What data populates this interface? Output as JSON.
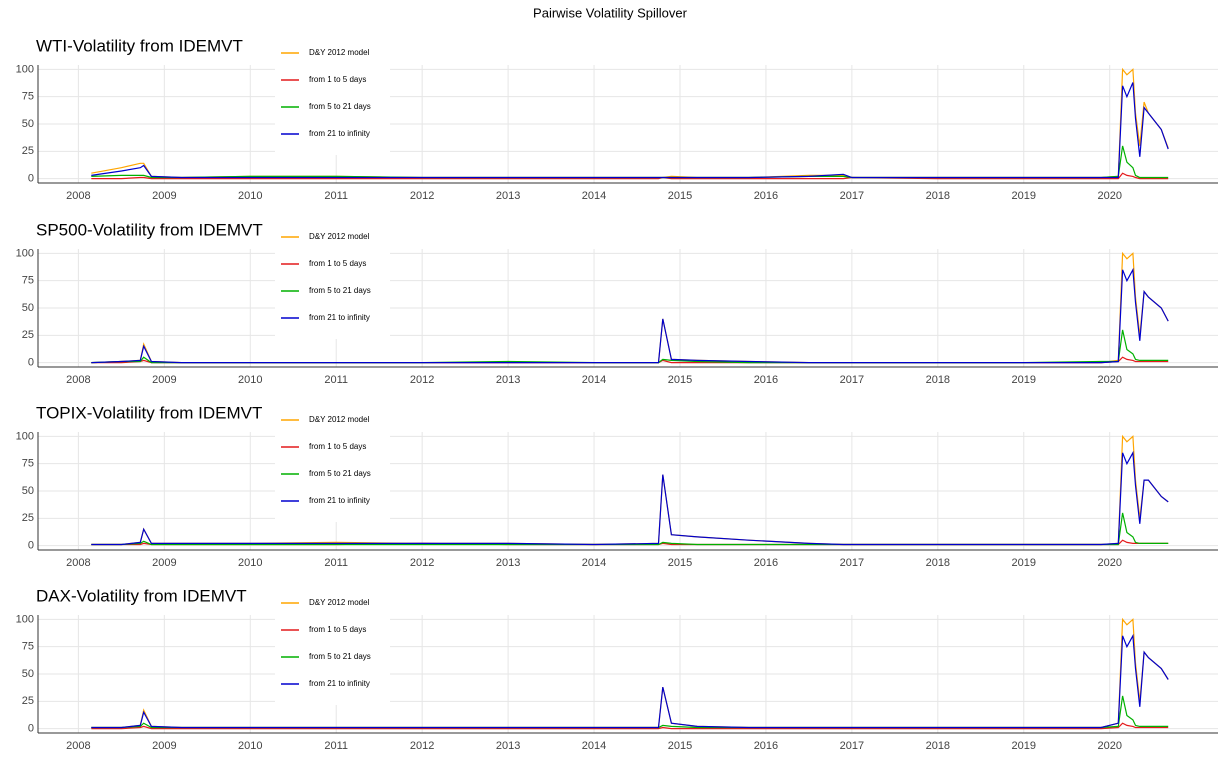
{
  "title": "Pairwise Volatility Spillover",
  "chart_data": [
    {
      "type": "line",
      "title": "WTI-Volatility from IDEMVT",
      "x": [
        2008.15,
        2008.5,
        2008.72,
        2008.76,
        2008.85,
        2009.2,
        2010,
        2011,
        2012,
        2013,
        2014,
        2014.75,
        2014.8,
        2014.9,
        2015.2,
        2015.8,
        2016.5,
        2016.9,
        2017,
        2018,
        2019,
        2019.9,
        2020.1,
        2020.15,
        2020.2,
        2020.27,
        2020.3,
        2020.35,
        2020.4,
        2020.45,
        2020.6,
        2020.68
      ],
      "series": [
        {
          "name": "D&Y 2012 model",
          "color": "#ffa500",
          "values": [
            5,
            10,
            14,
            14,
            2,
            1,
            2,
            2,
            1,
            1,
            1,
            1,
            1,
            2,
            1,
            1,
            3,
            3,
            1,
            1,
            1,
            1,
            2,
            100,
            95,
            100,
            60,
            30,
            70,
            60,
            45,
            28
          ]
        },
        {
          "name": "from 1 to 5 days",
          "color": "#e41a1c",
          "values": [
            0,
            0,
            1,
            1,
            0,
            0,
            0,
            0,
            0,
            0,
            0,
            0,
            1,
            0,
            0,
            0,
            0,
            0,
            1,
            0,
            0,
            0,
            0,
            5,
            3,
            2,
            1,
            0,
            0,
            0,
            0,
            0
          ]
        },
        {
          "name": "from 5 to 21 days",
          "color": "#00b000",
          "values": [
            2,
            3,
            3,
            3,
            1,
            1,
            2,
            2,
            1,
            1,
            1,
            1,
            1,
            1,
            1,
            1,
            2,
            2,
            1,
            1,
            1,
            1,
            2,
            30,
            15,
            10,
            3,
            1,
            1,
            1,
            1,
            1
          ]
        },
        {
          "name": "from 21 to infinity",
          "color": "#0000cd",
          "values": [
            3,
            7,
            10,
            12,
            2,
            1,
            1,
            1,
            1,
            1,
            1,
            1,
            1,
            1,
            1,
            1,
            2,
            4,
            1,
            1,
            1,
            1,
            1,
            85,
            75,
            88,
            55,
            20,
            65,
            60,
            45,
            27
          ]
        }
      ],
      "xlim": [
        2007.53,
        2021.26
      ],
      "ylim": [
        -4,
        104
      ],
      "xticks": [
        2008,
        2009,
        2010,
        2011,
        2012,
        2013,
        2014,
        2015,
        2016,
        2017,
        2018,
        2019,
        2020
      ],
      "yticks": [
        0,
        25,
        50,
        75,
        100
      ],
      "grid": true,
      "legend": "top-left"
    },
    {
      "type": "line",
      "title": "SP500-Volatility from IDEMVT",
      "x": [
        2008.15,
        2008.5,
        2008.72,
        2008.76,
        2008.85,
        2009.2,
        2010,
        2011,
        2012,
        2013,
        2014,
        2014.75,
        2014.8,
        2014.9,
        2015.2,
        2015.8,
        2016.5,
        2016.9,
        2017,
        2018,
        2019,
        2019.9,
        2020.1,
        2020.15,
        2020.2,
        2020.27,
        2020.3,
        2020.35,
        2020.4,
        2020.45,
        2020.6,
        2020.68
      ],
      "series": [
        {
          "name": "D&Y 2012 model",
          "color": "#ffa500",
          "values": [
            0,
            1,
            2,
            17,
            1,
            0,
            0,
            0,
            0,
            0,
            0,
            0,
            40,
            3,
            2,
            1,
            0,
            0,
            0,
            0,
            0,
            0,
            2,
            100,
            95,
            100,
            60,
            25,
            65,
            60,
            50,
            38
          ]
        },
        {
          "name": "from 1 to 5 days",
          "color": "#e41a1c",
          "values": [
            0,
            0,
            1,
            2,
            0,
            0,
            0,
            0,
            0,
            0,
            0,
            0,
            2,
            0,
            0,
            0,
            0,
            0,
            0,
            0,
            0,
            0,
            1,
            5,
            3,
            2,
            1,
            1,
            1,
            1,
            1,
            1
          ]
        },
        {
          "name": "from 5 to 21 days",
          "color": "#00b000",
          "values": [
            0,
            1,
            1,
            5,
            0,
            0,
            0,
            0,
            0,
            1,
            0,
            0,
            3,
            2,
            1,
            0,
            0,
            0,
            0,
            0,
            0,
            1,
            1,
            30,
            12,
            8,
            3,
            2,
            2,
            2,
            2,
            2
          ]
        },
        {
          "name": "from 21 to infinity",
          "color": "#0000cd",
          "values": [
            0,
            1,
            2,
            15,
            1,
            0,
            0,
            0,
            0,
            0,
            0,
            0,
            40,
            3,
            2,
            1,
            0,
            0,
            0,
            0,
            0,
            0,
            1,
            85,
            75,
            85,
            55,
            20,
            65,
            60,
            50,
            38
          ]
        }
      ],
      "xlim": [
        2007.53,
        2021.26
      ],
      "ylim": [
        -4,
        104
      ],
      "xticks": [
        2008,
        2009,
        2010,
        2011,
        2012,
        2013,
        2014,
        2015,
        2016,
        2017,
        2018,
        2019,
        2020
      ],
      "yticks": [
        0,
        25,
        50,
        75,
        100
      ],
      "grid": true,
      "legend": "top-left"
    },
    {
      "type": "line",
      "title": "TOPIX-Volatility from IDEMVT",
      "x": [
        2008.15,
        2008.5,
        2008.72,
        2008.76,
        2008.85,
        2009.2,
        2010,
        2011,
        2012,
        2013,
        2014,
        2014.75,
        2014.8,
        2014.9,
        2015.2,
        2015.8,
        2016.5,
        2016.9,
        2017,
        2018,
        2019,
        2019.9,
        2020.1,
        2020.15,
        2020.2,
        2020.27,
        2020.3,
        2020.35,
        2020.4,
        2020.45,
        2020.6,
        2020.68
      ],
      "series": [
        {
          "name": "D&Y 2012 model",
          "color": "#ffa500",
          "values": [
            1,
            1,
            3,
            15,
            2,
            2,
            2,
            3,
            2,
            2,
            1,
            2,
            65,
            10,
            8,
            5,
            2,
            1,
            1,
            1,
            1,
            1,
            2,
            100,
            95,
            100,
            60,
            25,
            60,
            60,
            45,
            40
          ]
        },
        {
          "name": "from 1 to 5 days",
          "color": "#e41a1c",
          "values": [
            1,
            1,
            1,
            2,
            1,
            1,
            1,
            1,
            2,
            1,
            1,
            1,
            2,
            1,
            1,
            1,
            1,
            1,
            1,
            1,
            1,
            1,
            1,
            5,
            3,
            2,
            2,
            2,
            2,
            2,
            2,
            2
          ]
        },
        {
          "name": "from 5 to 21 days",
          "color": "#00b000",
          "values": [
            1,
            1,
            2,
            4,
            1,
            1,
            1,
            1,
            1,
            1,
            1,
            1,
            3,
            2,
            1,
            1,
            1,
            1,
            1,
            1,
            1,
            1,
            1,
            30,
            12,
            8,
            3,
            2,
            2,
            2,
            2,
            2
          ]
        },
        {
          "name": "from 21 to infinity",
          "color": "#0000cd",
          "values": [
            1,
            1,
            3,
            15,
            2,
            2,
            2,
            2,
            2,
            2,
            1,
            2,
            65,
            10,
            8,
            5,
            2,
            1,
            1,
            1,
            1,
            1,
            2,
            85,
            75,
            85,
            55,
            20,
            60,
            60,
            45,
            40
          ]
        }
      ],
      "xlim": [
        2007.53,
        2021.26
      ],
      "ylim": [
        -4,
        104
      ],
      "xticks": [
        2008,
        2009,
        2010,
        2011,
        2012,
        2013,
        2014,
        2015,
        2016,
        2017,
        2018,
        2019,
        2020
      ],
      "yticks": [
        0,
        25,
        50,
        75,
        100
      ],
      "grid": true,
      "legend": "top-left"
    },
    {
      "type": "line",
      "title": "DAX-Volatility from IDEMVT",
      "x": [
        2008.15,
        2008.5,
        2008.72,
        2008.76,
        2008.85,
        2009.2,
        2010,
        2011,
        2012,
        2013,
        2014,
        2014.75,
        2014.8,
        2014.9,
        2015.2,
        2015.8,
        2016.5,
        2016.9,
        2017,
        2018,
        2019,
        2019.9,
        2020.1,
        2020.15,
        2020.2,
        2020.27,
        2020.3,
        2020.35,
        2020.4,
        2020.45,
        2020.6,
        2020.68
      ],
      "series": [
        {
          "name": "D&Y 2012 model",
          "color": "#ffa500",
          "values": [
            1,
            1,
            3,
            17,
            2,
            1,
            1,
            1,
            1,
            1,
            1,
            1,
            38,
            5,
            2,
            1,
            1,
            1,
            1,
            1,
            1,
            1,
            5,
            100,
            95,
            100,
            60,
            25,
            70,
            65,
            55,
            45
          ]
        },
        {
          "name": "from 1 to 5 days",
          "color": "#e41a1c",
          "values": [
            0,
            0,
            1,
            2,
            0,
            0,
            0,
            0,
            0,
            0,
            0,
            0,
            1,
            0,
            0,
            0,
            0,
            0,
            0,
            0,
            0,
            0,
            1,
            5,
            3,
            2,
            1,
            1,
            1,
            1,
            1,
            1
          ]
        },
        {
          "name": "from 5 to 21 days",
          "color": "#00b000",
          "values": [
            1,
            1,
            2,
            5,
            1,
            1,
            1,
            1,
            1,
            1,
            1,
            1,
            3,
            2,
            1,
            1,
            1,
            1,
            1,
            1,
            1,
            1,
            2,
            30,
            12,
            8,
            3,
            2,
            2,
            2,
            2,
            2
          ]
        },
        {
          "name": "from 21 to infinity",
          "color": "#0000cd",
          "values": [
            1,
            1,
            3,
            15,
            2,
            1,
            1,
            1,
            1,
            1,
            1,
            1,
            38,
            5,
            2,
            1,
            1,
            1,
            1,
            1,
            1,
            1,
            5,
            85,
            75,
            85,
            55,
            20,
            70,
            65,
            55,
            45
          ]
        }
      ],
      "xlim": [
        2007.53,
        2021.26
      ],
      "ylim": [
        -4,
        104
      ],
      "xticks": [
        2008,
        2009,
        2010,
        2011,
        2012,
        2013,
        2014,
        2015,
        2016,
        2017,
        2018,
        2019,
        2020
      ],
      "yticks": [
        0,
        25,
        50,
        75,
        100
      ],
      "grid": true,
      "legend": "top-left"
    }
  ]
}
